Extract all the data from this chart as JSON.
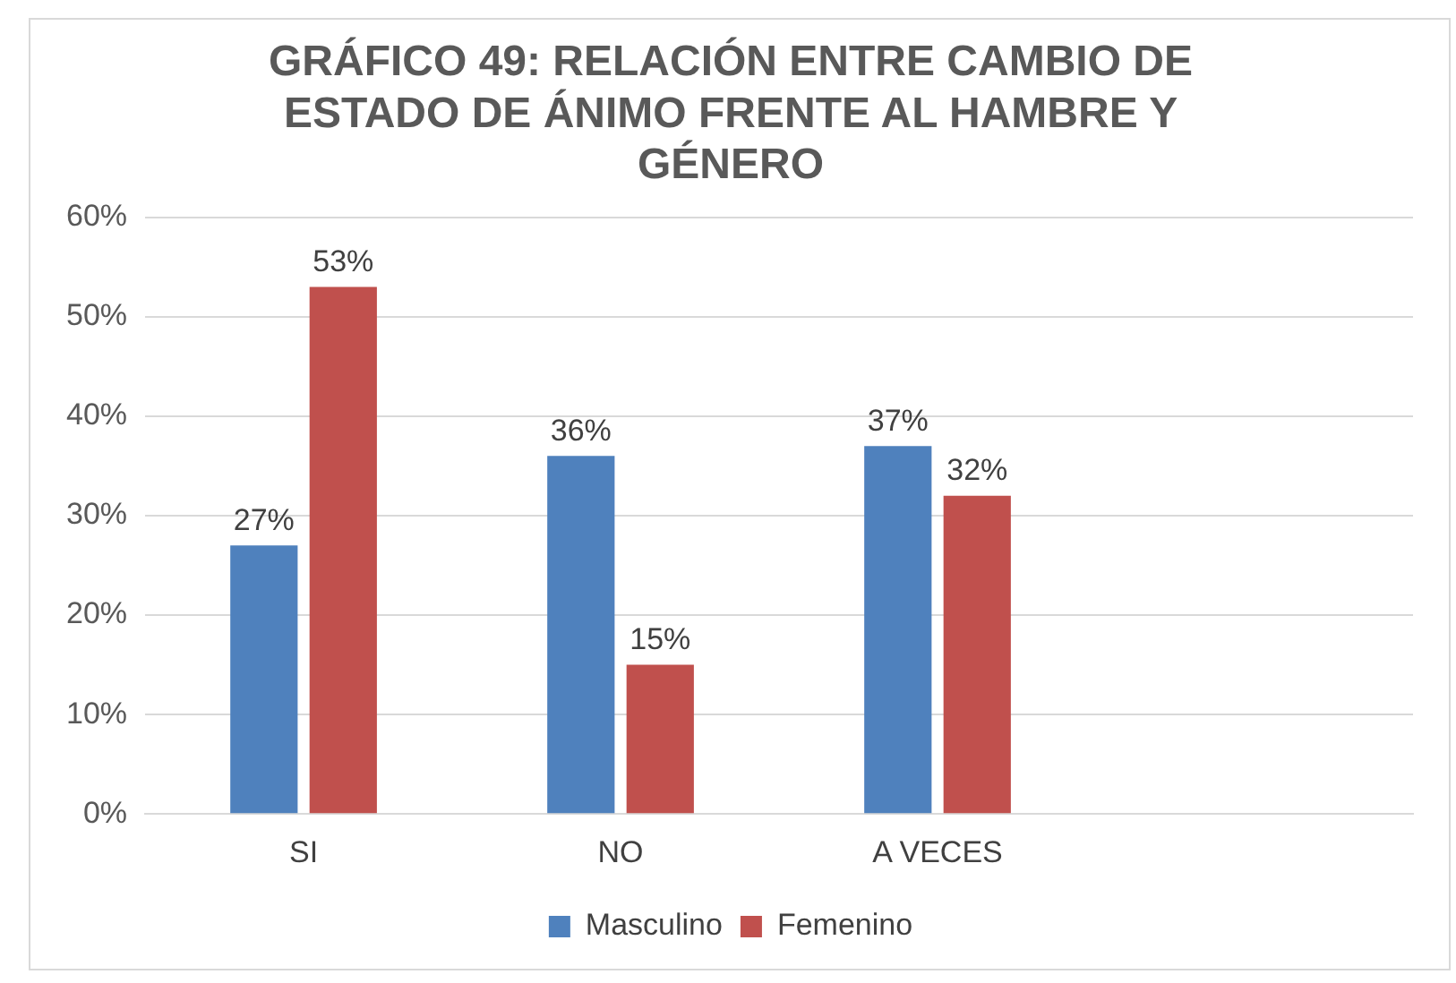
{
  "chart_data": {
    "type": "bar",
    "title": "GRÁFICO 49: RELACIÓN ENTRE CAMBIO DE ESTADO DE ÁNIMO FRENTE AL HAMBRE Y GÉNERO",
    "categories": [
      "SI",
      "NO",
      "A VECES",
      null
    ],
    "series": [
      {
        "name": "Masculino",
        "color": "#4f81bd",
        "values": [
          27,
          36,
          37,
          null
        ],
        "value_labels": [
          "27%",
          "36%",
          "37%",
          null
        ]
      },
      {
        "name": "Femenino",
        "color": "#c0504d",
        "values": [
          53,
          15,
          32,
          null
        ],
        "value_labels": [
          "53%",
          "15%",
          "32%",
          null
        ]
      }
    ],
    "ylim": [
      0,
      60
    ],
    "yticks": [
      {
        "value": 0,
        "label": "0%"
      },
      {
        "value": 10,
        "label": "10%"
      },
      {
        "value": 20,
        "label": "20%"
      },
      {
        "value": 30,
        "label": "30%"
      },
      {
        "value": 40,
        "label": "40%"
      },
      {
        "value": 50,
        "label": "50%"
      },
      {
        "value": 60,
        "label": "60%"
      }
    ],
    "grid": "y",
    "legend": "bottom"
  }
}
